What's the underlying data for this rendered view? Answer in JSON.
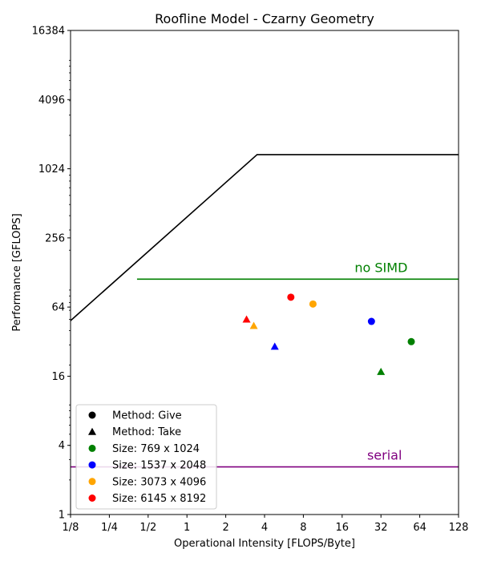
{
  "chart_data": {
    "type": "scatter",
    "title": "Roofline Model - Czarny Geometry",
    "xlabel": "Operational Intensity [FLOPS/Byte]",
    "ylabel": "Performance [GFLOPS]",
    "xscale": "log2",
    "yscale": "log2",
    "xlim": [
      0.125,
      128
    ],
    "ylim": [
      1,
      16384
    ],
    "x_ticks": [
      {
        "value": 0.125,
        "label": "1/8"
      },
      {
        "value": 0.25,
        "label": "1/4"
      },
      {
        "value": 0.5,
        "label": "1/2"
      },
      {
        "value": 1,
        "label": "1"
      },
      {
        "value": 2,
        "label": "2"
      },
      {
        "value": 4,
        "label": "4"
      },
      {
        "value": 8,
        "label": "8"
      },
      {
        "value": 16,
        "label": "16"
      },
      {
        "value": 32,
        "label": "32"
      },
      {
        "value": 64,
        "label": "64"
      },
      {
        "value": 128,
        "label": "128"
      }
    ],
    "y_ticks": [
      {
        "value": 1,
        "label": "1"
      },
      {
        "value": 4,
        "label": "4"
      },
      {
        "value": 16,
        "label": "16"
      },
      {
        "value": 64,
        "label": "64"
      },
      {
        "value": 256,
        "label": "256"
      },
      {
        "value": 1024,
        "label": "1024"
      },
      {
        "value": 4096,
        "label": "4096"
      },
      {
        "value": 16384,
        "label": "16384"
      }
    ],
    "grid": false,
    "legend_position": "bottom-left",
    "roofline": {
      "color": "#000000",
      "points": [
        [
          0.125,
          48.7
        ],
        [
          3.5,
          1360
        ],
        [
          128,
          1360
        ]
      ]
    },
    "ceilings": [
      {
        "label": "no SIMD",
        "color": "#008000",
        "y": 112,
        "x_start": 0.41,
        "x_end": 128,
        "label_x": 20
      },
      {
        "label": "serial",
        "color": "#800080",
        "y": 2.6,
        "x_start": 0.125,
        "x_end": 128,
        "label_x": 25
      }
    ],
    "legend": [
      {
        "label": "Method: Give",
        "marker": "circle",
        "color": "#000000"
      },
      {
        "label": "Method: Take",
        "marker": "triangle",
        "color": "#000000"
      },
      {
        "label": "Size: 769 x 1024",
        "marker": "circle",
        "color": "#008000"
      },
      {
        "label": "Size: 1537 x 2048",
        "marker": "circle",
        "color": "#0000ff"
      },
      {
        "label": "Size: 3073 x 4096",
        "marker": "circle",
        "color": "#ffa500"
      },
      {
        "label": "Size: 6145 x 8192",
        "marker": "circle",
        "color": "#ff0000"
      }
    ],
    "points": [
      {
        "method": "Give",
        "size": "769 x 1024",
        "x": 55,
        "y": 32,
        "marker": "circle",
        "color": "#008000"
      },
      {
        "method": "Give",
        "size": "1537 x 2048",
        "x": 27,
        "y": 48,
        "marker": "circle",
        "color": "#0000ff"
      },
      {
        "method": "Give",
        "size": "3073 x 4096",
        "x": 9.5,
        "y": 68,
        "marker": "circle",
        "color": "#ffa500"
      },
      {
        "method": "Give",
        "size": "6145 x 8192",
        "x": 6.4,
        "y": 78,
        "marker": "circle",
        "color": "#ff0000"
      },
      {
        "method": "Take",
        "size": "769 x 1024",
        "x": 32,
        "y": 17.5,
        "marker": "triangle",
        "color": "#008000"
      },
      {
        "method": "Take",
        "size": "1537 x 2048",
        "x": 4.8,
        "y": 29,
        "marker": "triangle",
        "color": "#0000ff"
      },
      {
        "method": "Take",
        "size": "3073 x 4096",
        "x": 3.3,
        "y": 44,
        "marker": "triangle",
        "color": "#ffa500"
      },
      {
        "method": "Take",
        "size": "6145 x 8192",
        "x": 2.9,
        "y": 50,
        "marker": "triangle",
        "color": "#ff0000"
      }
    ]
  }
}
